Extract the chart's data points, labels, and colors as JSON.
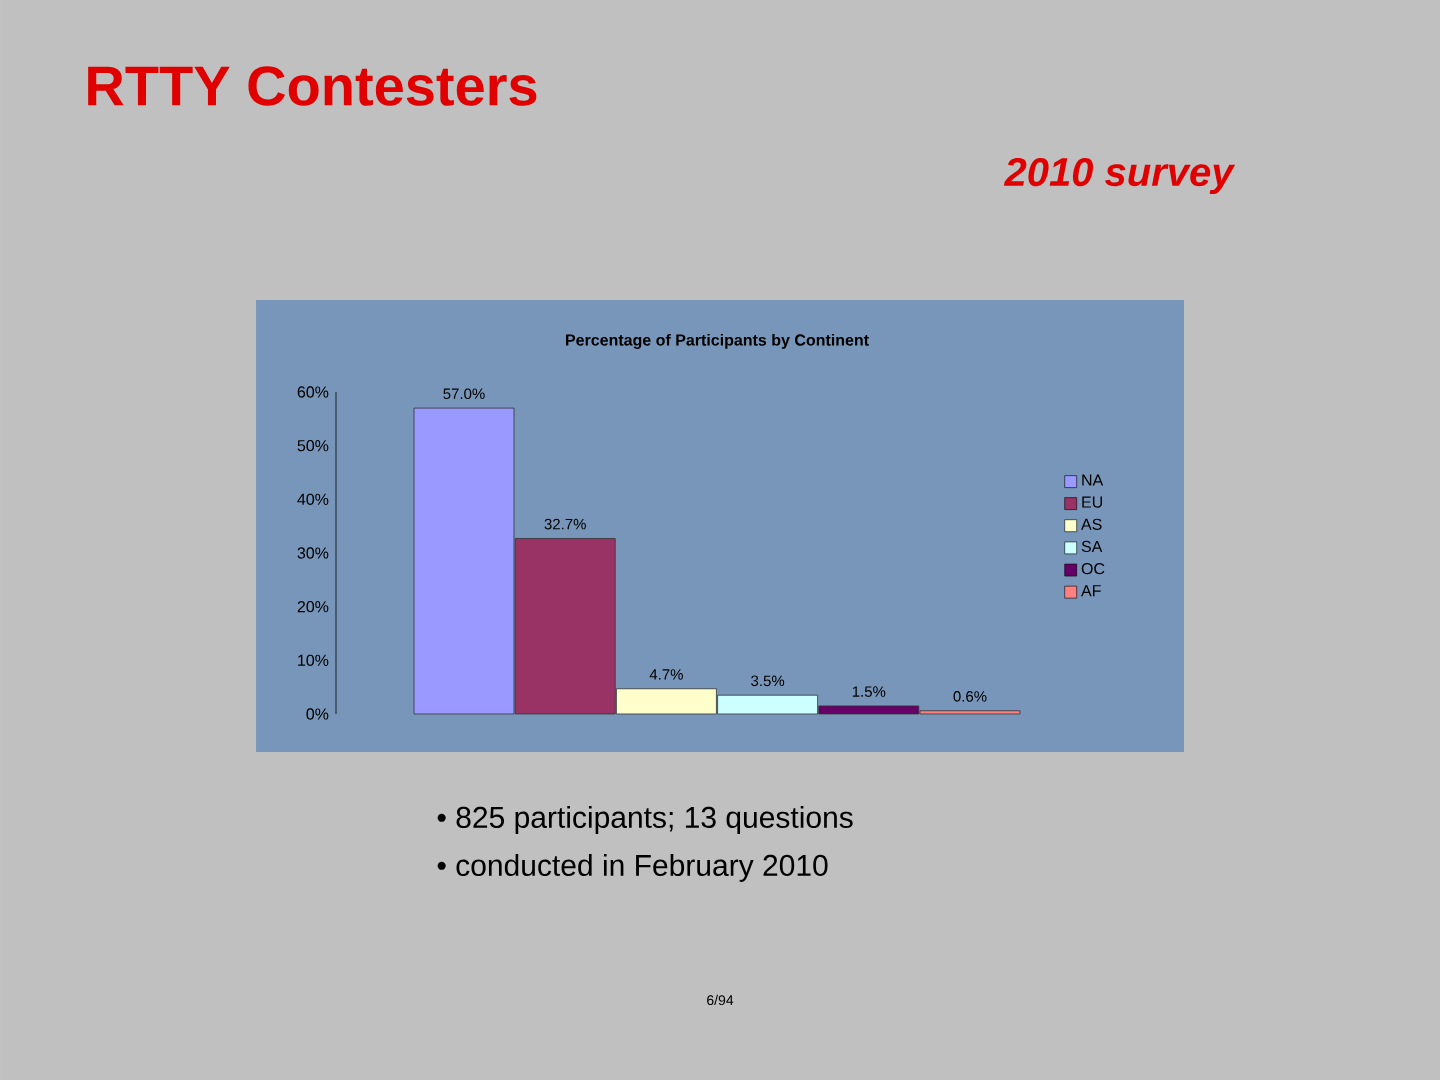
{
  "chart_data": {
    "type": "bar",
    "title": "Percentage of Participants by Continent",
    "categories": [
      null
    ],
    "series": [
      {
        "name": "NA",
        "color": "#9999ff",
        "values": [
          57.0
        ],
        "value_labels": [
          "57.0%"
        ]
      },
      {
        "name": "EU",
        "color": "#993366",
        "values": [
          32.7
        ],
        "value_labels": [
          "32.7%"
        ]
      },
      {
        "name": "AS",
        "color": "#ffffcc",
        "values": [
          4.7
        ],
        "value_labels": [
          "4.7%"
        ]
      },
      {
        "name": "SA",
        "color": "#ccffff",
        "values": [
          3.5
        ],
        "value_labels": [
          "3.5%"
        ]
      },
      {
        "name": "OC",
        "color": "#660066",
        "values": [
          1.5
        ],
        "value_labels": [
          "1.5%"
        ]
      },
      {
        "name": "AF",
        "color": "#ff8080",
        "values": [
          0.6
        ],
        "value_labels": [
          "0.6%"
        ]
      }
    ],
    "ylim": [
      0,
      60
    ],
    "yticks": [
      {
        "value": 0,
        "label": "0%"
      },
      {
        "value": 10,
        "label": "10%"
      },
      {
        "value": 20,
        "label": "20%"
      },
      {
        "value": 30,
        "label": "30%"
      },
      {
        "value": 40,
        "label": "40%"
      },
      {
        "value": 50,
        "label": "50%"
      },
      {
        "value": 60,
        "label": "60%"
      }
    ],
    "legend": "right",
    "annotations": [
      "RTTY Contesters",
      "2010 survey",
      "• 825 participants; 13 questions",
      "• conducted in February 2010",
      "6/94"
    ]
  }
}
